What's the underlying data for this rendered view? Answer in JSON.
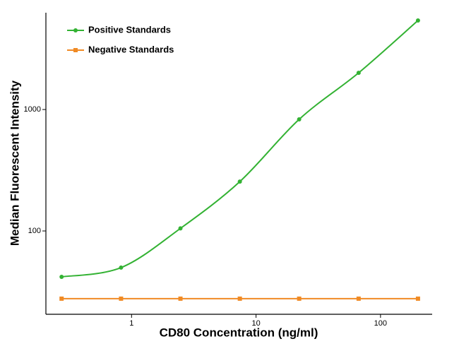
{
  "chart_data": {
    "type": "scatter",
    "xlabel": "CD80 Concentration (ng/ml)",
    "ylabel": "Median Fluorescent Intensity",
    "x": [
      0.274,
      0.823,
      2.47,
      7.41,
      22.2,
      66.7,
      200
    ],
    "series": [
      {
        "name": "Positive Standards",
        "color": "#33b233",
        "marker": "circle",
        "values": [
          41.9,
          49.9,
          105,
          255,
          830,
          2005,
          5410
        ]
      },
      {
        "name": "Negative Standards",
        "color": "#f08a24",
        "marker": "square",
        "values": [
          27.7,
          27.7,
          27.7,
          27.7,
          27.7,
          27.7,
          27.7
        ]
      }
    ],
    "xscale": "log",
    "yscale": "log",
    "xlim": [
      0.205,
      260
    ],
    "ylim": [
      20.6,
      6270
    ],
    "xticks": [
      1,
      10,
      100
    ],
    "yticks": [
      100,
      1000
    ],
    "grid": false,
    "legend": "upper left"
  }
}
